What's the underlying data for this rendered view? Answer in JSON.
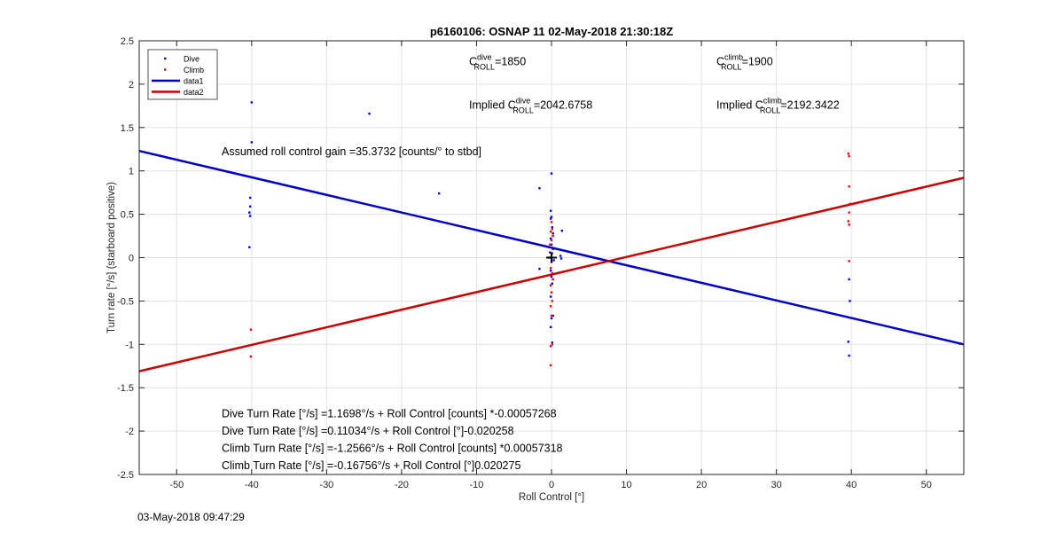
{
  "chart_data": {
    "type": "scatter",
    "title": "p6160106: OSNAP 11 02-May-2018 21:30:18Z",
    "xlabel": "Roll Control [°]",
    "ylabel": "Turn rate [°/s] (starboard positive)",
    "xlim": [
      -55,
      55
    ],
    "ylim": [
      -2.5,
      2.5
    ],
    "xticks": [
      -50,
      -40,
      -30,
      -20,
      -10,
      0,
      10,
      20,
      30,
      40,
      50
    ],
    "yticks": [
      -2.5,
      -2,
      -1.5,
      -1,
      -0.5,
      0,
      0.5,
      1,
      1.5,
      2,
      2.5
    ],
    "xtick_labels": [
      "-50",
      "-40",
      "-30",
      "-20",
      "-10",
      "0",
      "10",
      "20",
      "30",
      "40",
      "50"
    ],
    "ytick_labels": [
      "-2.5",
      "-2",
      "-1.5",
      "-1",
      "-0.5",
      "0",
      "0.5",
      "1",
      "1.5",
      "2",
      "2.5"
    ],
    "grid": true,
    "legend_position": "top-left",
    "colors": {
      "dive": "#0000ff",
      "climb": "#ff0000",
      "data1": "#0000cc",
      "data2": "#cc0000"
    },
    "series": [
      {
        "name": "Dive",
        "kind": "points",
        "points": [
          [
            -40,
            1.79
          ],
          [
            -40,
            1.33
          ],
          [
            -40.2,
            0.69
          ],
          [
            -40.2,
            0.59
          ],
          [
            -40.3,
            0.52
          ],
          [
            -40.2,
            0.48
          ],
          [
            -40.3,
            0.12
          ],
          [
            -24.3,
            1.66
          ],
          [
            -15,
            0.74
          ],
          [
            -1.6,
            0.8
          ],
          [
            0,
            0.97
          ],
          [
            -0.1,
            0.54
          ],
          [
            0,
            0.47
          ],
          [
            -0.1,
            0.45
          ],
          [
            0.1,
            0.35
          ],
          [
            1.4,
            0.31
          ],
          [
            0.2,
            0.28
          ],
          [
            -0.1,
            0.22
          ],
          [
            0,
            0.15
          ],
          [
            0.2,
            0.1
          ],
          [
            -0.2,
            0.06
          ],
          [
            1.2,
            0.02
          ],
          [
            -0.3,
            0.0
          ],
          [
            0.3,
            -0.03
          ],
          [
            1.3,
            -0.01
          ],
          [
            -1.6,
            -0.13
          ],
          [
            -0.1,
            -0.15
          ],
          [
            0,
            -0.22
          ],
          [
            0.1,
            -0.3
          ],
          [
            -0.1,
            -0.45
          ],
          [
            0.2,
            -0.67
          ],
          [
            0,
            -0.7
          ],
          [
            -0.1,
            -0.8
          ],
          [
            0.1,
            -0.98
          ],
          [
            39.7,
            -0.25
          ],
          [
            39.8,
            -0.5
          ],
          [
            39.6,
            -0.97
          ],
          [
            39.7,
            -1.13
          ]
        ]
      },
      {
        "name": "Climb",
        "kind": "points",
        "points": [
          [
            -40.1,
            -0.83
          ],
          [
            -40.1,
            -1.14
          ],
          [
            39.6,
            1.2
          ],
          [
            39.7,
            1.17
          ],
          [
            39.7,
            0.82
          ],
          [
            39.8,
            0.62
          ],
          [
            39.7,
            0.52
          ],
          [
            39.6,
            0.42
          ],
          [
            39.7,
            0.38
          ],
          [
            39.7,
            -0.04
          ],
          [
            0,
            0.41
          ],
          [
            0.1,
            0.33
          ],
          [
            -0.1,
            0.3
          ],
          [
            0.2,
            0.25
          ],
          [
            0,
            0.2
          ],
          [
            -0.2,
            0.15
          ],
          [
            0.1,
            0.05
          ],
          [
            0,
            -0.05
          ],
          [
            -0.1,
            -0.12
          ],
          [
            0.1,
            -0.18
          ],
          [
            0.2,
            -0.25
          ],
          [
            -0.1,
            -0.32
          ],
          [
            0,
            -0.4
          ],
          [
            0.1,
            -0.5
          ],
          [
            -0.1,
            -0.56
          ],
          [
            0,
            -0.67
          ],
          [
            0.1,
            -1.0
          ],
          [
            -0.1,
            -1.02
          ],
          [
            -0.1,
            -1.24
          ]
        ]
      },
      {
        "name": "data1",
        "kind": "line",
        "points": [
          [
            -55,
            1.23
          ],
          [
            55,
            -1.0
          ]
        ]
      },
      {
        "name": "data2",
        "kind": "line",
        "points": [
          [
            -55,
            -1.31
          ],
          [
            55,
            0.92
          ]
        ]
      }
    ],
    "center_marker": [
      0,
      0
    ],
    "annotations": {
      "c_dive": {
        "prefix": "C",
        "sup": "dive",
        "sub": "ROLL",
        "value": "=1850",
        "x": -11,
        "y": 2.22
      },
      "c_climb": {
        "prefix": "C",
        "sup": "climb",
        "sub": "ROLL",
        "value": "=1900",
        "x": 22,
        "y": 2.22
      },
      "implied_dive": {
        "prefix": "Implied C",
        "sup": "dive",
        "sub": "ROLL",
        "value": "=2042.6758",
        "x": -11,
        "y": 1.72
      },
      "implied_climb": {
        "prefix": "Implied C",
        "sup": "climb",
        "sub": "ROLL",
        "value": "=2192.3422",
        "x": 22,
        "y": 1.72
      },
      "gain": {
        "text": "Assumed roll control gain =35.3732 [counts/° to stbd]",
        "x": -44,
        "y": 1.22
      },
      "eq1": {
        "text": "Dive Turn Rate [°/s] =1.1698°/s + Roll Control [counts] *-0.00057268",
        "x": -44,
        "y": -1.8
      },
      "eq2": {
        "text": "Dive Turn Rate [°/s] =0.11034°/s + Roll Control [°]-0.020258",
        "x": -44,
        "y": -2.0
      },
      "eq3": {
        "text": "Climb Turn Rate [°/s] =-1.2566°/s + Roll Control [counts] *0.00057318",
        "x": -44,
        "y": -2.2
      },
      "eq4": {
        "text": "Climb Turn Rate [°/s] =-0.16756°/s + Roll Control [°]0.020275",
        "x": -44,
        "y": -2.4
      }
    }
  },
  "footer": {
    "timestamp": "03-May-2018 09:47:29"
  }
}
